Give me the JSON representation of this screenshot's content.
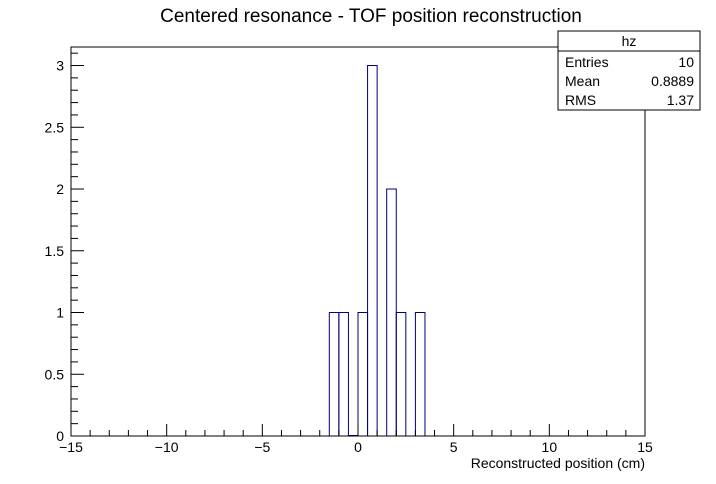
{
  "chart_data": {
    "type": "bar",
    "title": "Centered resonance - TOF position reconstruction",
    "xlabel": "Reconstructed position (cm)",
    "ylabel": "",
    "xlim": [
      -15,
      15
    ],
    "ylim": [
      0,
      3.15
    ],
    "bin_width": 0.5,
    "bins": [
      {
        "x_low": -1.5,
        "x_high": -1.0,
        "count": 1
      },
      {
        "x_low": -1.0,
        "x_high": -0.5,
        "count": 1
      },
      {
        "x_low": 0.0,
        "x_high": 0.5,
        "count": 1
      },
      {
        "x_low": 0.5,
        "x_high": 1.0,
        "count": 3
      },
      {
        "x_low": 1.5,
        "x_high": 2.0,
        "count": 2
      },
      {
        "x_low": 2.0,
        "x_high": 2.5,
        "count": 1
      },
      {
        "x_low": 3.0,
        "x_high": 3.5,
        "count": 1
      }
    ],
    "x_ticks": [
      {
        "value": -15,
        "label": "−15"
      },
      {
        "value": -10,
        "label": "−10"
      },
      {
        "value": -5,
        "label": "−5"
      },
      {
        "value": 0,
        "label": "0"
      },
      {
        "value": 5,
        "label": "5"
      },
      {
        "value": 10,
        "label": "10"
      },
      {
        "value": 15,
        "label": "15"
      }
    ],
    "y_ticks": [
      {
        "value": 0,
        "label": "0"
      },
      {
        "value": 0.5,
        "label": "0.5"
      },
      {
        "value": 1,
        "label": "1"
      },
      {
        "value": 1.5,
        "label": "1.5"
      },
      {
        "value": 2,
        "label": "2"
      },
      {
        "value": 2.5,
        "label": "2.5"
      },
      {
        "value": 3,
        "label": "3"
      }
    ],
    "line_color": "#000080",
    "grid": false,
    "legend": "none"
  },
  "stats_box": {
    "name": "hz",
    "rows": [
      {
        "label": "Entries",
        "value": "10"
      },
      {
        "label": "Mean",
        "value": "0.8889"
      },
      {
        "label": "RMS",
        "value": "1.37"
      }
    ]
  }
}
